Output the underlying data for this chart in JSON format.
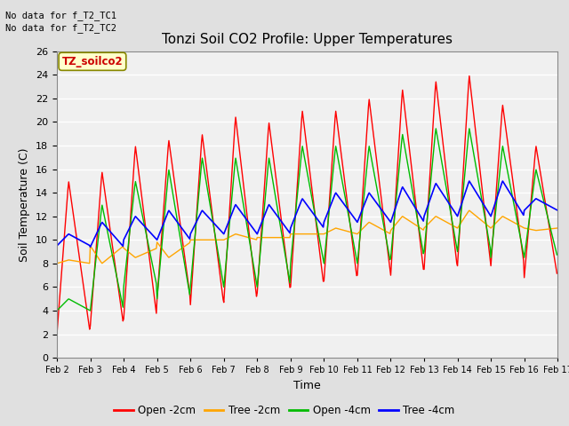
{
  "title": "Tonzi Soil CO2 Profile: Upper Temperatures",
  "xlabel": "Time",
  "ylabel": "Soil Temperature (C)",
  "annotation1": "No data for f_T2_TC1",
  "annotation2": "No data for f_T2_TC2",
  "legend_box_label": "TZ_soilco2",
  "ylim": [
    0,
    26
  ],
  "xlim_days": 15,
  "x_tick_labels": [
    "Feb 2",
    "Feb 3",
    "Feb 4",
    "Feb 5",
    "Feb 6",
    "Feb 7",
    "Feb 8",
    "Feb 9",
    "Feb 10",
    "Feb 11",
    "Feb 12",
    "Feb 13",
    "Feb 14",
    "Feb 15",
    "Feb 16",
    "Feb 17"
  ],
  "line_colors": {
    "open_2cm": "#FF0000",
    "tree_2cm": "#FFA500",
    "open_4cm": "#00BB00",
    "tree_4cm": "#0000FF"
  },
  "legend_labels": [
    "Open -2cm",
    "Tree -2cm",
    "Open -4cm",
    "Tree -4cm"
  ],
  "fig_bg_color": "#E0E0E0",
  "plot_bg_color": "#F0F0F0",
  "grid_color": "#FFFFFF",
  "open_2cm": {
    "peaks": [
      15.0,
      15.8,
      18.0,
      18.5,
      19.0,
      20.5,
      20.0,
      21.0,
      21.0,
      22.0,
      22.8,
      23.5,
      24.0,
      21.5,
      18.0
    ],
    "troughs": [
      2.0,
      2.7,
      3.3,
      5.0,
      4.5,
      4.7,
      5.5,
      6.0,
      6.5,
      7.0,
      7.0,
      7.5,
      7.8,
      7.8,
      6.8
    ]
  },
  "tree_2cm": {
    "peaks": [
      8.3,
      8.0,
      8.5,
      8.5,
      10.0,
      10.5,
      10.2,
      10.5,
      11.0,
      11.5,
      12.0,
      12.0,
      12.5,
      12.0,
      10.8
    ],
    "troughs": [
      8.0,
      9.5,
      9.3,
      9.8,
      10.0,
      10.0,
      10.2,
      10.5,
      10.5,
      10.5,
      10.8,
      11.0,
      11.0,
      11.0,
      11.0
    ]
  },
  "open_4cm": {
    "peaks": [
      5.0,
      13.0,
      15.0,
      16.0,
      17.0,
      17.0,
      17.0,
      18.0,
      18.0,
      18.0,
      19.0,
      19.5,
      19.5,
      18.0,
      16.0
    ],
    "troughs": [
      4.0,
      4.0,
      6.0,
      5.0,
      6.0,
      6.0,
      6.0,
      8.0,
      8.0,
      8.0,
      8.5,
      9.0,
      9.0,
      8.5,
      8.5
    ]
  },
  "tree_4cm": {
    "peaks": [
      10.5,
      11.5,
      12.0,
      12.5,
      12.5,
      13.0,
      13.0,
      13.5,
      14.0,
      14.0,
      14.5,
      14.8,
      15.0,
      15.0,
      13.5
    ],
    "troughs": [
      9.5,
      9.4,
      10.0,
      10.0,
      10.5,
      10.5,
      10.5,
      11.0,
      11.5,
      11.5,
      11.5,
      12.0,
      12.0,
      12.0,
      12.5
    ]
  }
}
